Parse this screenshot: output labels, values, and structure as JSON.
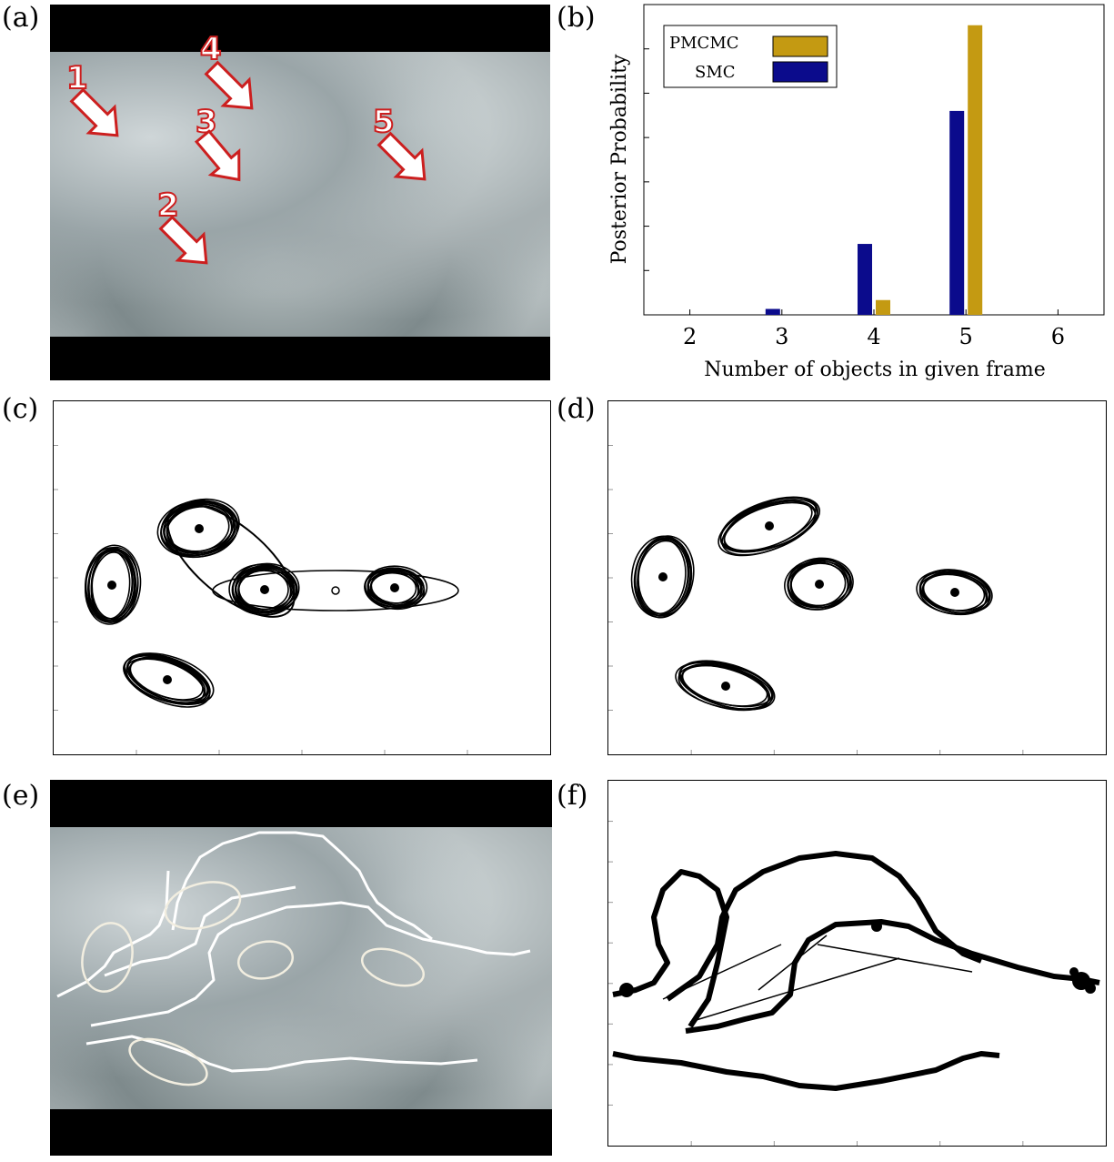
{
  "panels": {
    "a": {
      "label": "(a)",
      "markers": [
        "1",
        "2",
        "3",
        "4",
        "5"
      ]
    },
    "b": {
      "label": "(b)"
    },
    "c": {
      "label": "(c)"
    },
    "d": {
      "label": "(d)"
    },
    "e": {
      "label": "(e)"
    },
    "f": {
      "label": "(f)"
    }
  },
  "chart_data": {
    "type": "bar",
    "categories": [
      "2",
      "3",
      "4",
      "5",
      "6"
    ],
    "series": [
      {
        "name": "SMC",
        "color": "#0b0b8c",
        "values": [
          0.0,
          0.02,
          0.24,
          0.69,
          0.0
        ]
      },
      {
        "name": "PMCMC",
        "color": "#c49a12",
        "values": [
          0.0,
          0.0,
          0.05,
          0.98,
          0.0
        ]
      }
    ],
    "xlabel": "Number of objects in given frame",
    "ylabel": "Posterior Probability",
    "ylim": [
      0,
      1.05
    ],
    "legend": "top-left",
    "legend_order": [
      "PMCMC",
      "SMC"
    ]
  },
  "colors": {
    "arrow_fill": "#ffffff",
    "arrow_stroke": "#cc1f1f",
    "track_white": "#ffffff"
  }
}
